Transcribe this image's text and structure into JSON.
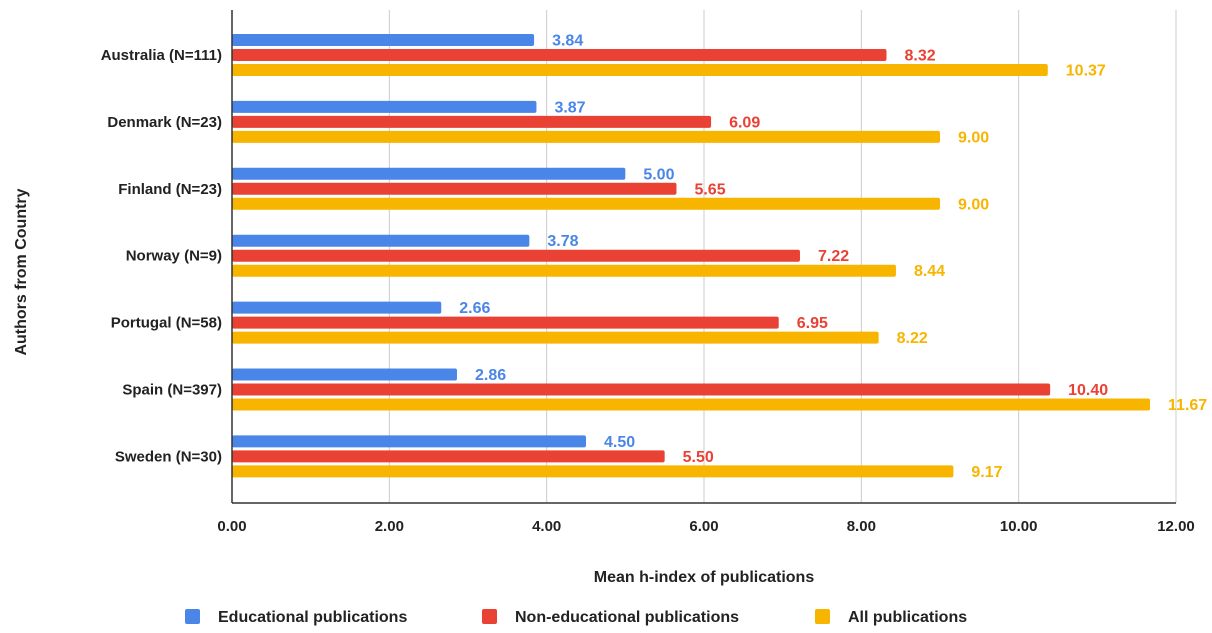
{
  "chart_data": {
    "type": "bar",
    "orientation": "horizontal",
    "categories": [
      "Australia (N=111)",
      "Denmark (N=23)",
      "Finland (N=23)",
      "Norway (N=9)",
      "Portugal (N=58)",
      "Spain (N=397)",
      "Sweden (N=30)"
    ],
    "series": [
      {
        "name": "Educational publications",
        "color": "#4a86e8",
        "values": [
          3.84,
          3.87,
          5.0,
          3.78,
          2.66,
          2.86,
          4.5
        ],
        "labels": [
          "3.84",
          "3.87",
          "5.00",
          "3.78",
          "2.66",
          "2.86",
          "4.50"
        ]
      },
      {
        "name": "Non-educational publications",
        "color": "#e94235",
        "values": [
          8.32,
          6.09,
          5.65,
          7.22,
          6.95,
          10.4,
          5.5
        ],
        "labels": [
          "8.32",
          "6.09",
          "5.65",
          "7.22",
          "6.95",
          "10.40",
          "5.50"
        ]
      },
      {
        "name": "All publications",
        "color": "#f7b500",
        "values": [
          10.37,
          9.0,
          9.0,
          8.44,
          8.22,
          11.67,
          9.17
        ],
        "labels": [
          "10.37",
          "9.00",
          "9.00",
          "8.44",
          "8.22",
          "11.67",
          "9.17"
        ]
      }
    ],
    "xlabel": "Mean h-index of publications",
    "ylabel": "Authors from Country",
    "xlim": [
      0,
      12
    ],
    "xticks": [
      0,
      2,
      4,
      6,
      8,
      10,
      12
    ],
    "xtick_labels": [
      "0.00",
      "2.00",
      "4.00",
      "6.00",
      "8.00",
      "10.00",
      "12.00"
    ],
    "grid": "vertical",
    "legend_position": "bottom"
  }
}
